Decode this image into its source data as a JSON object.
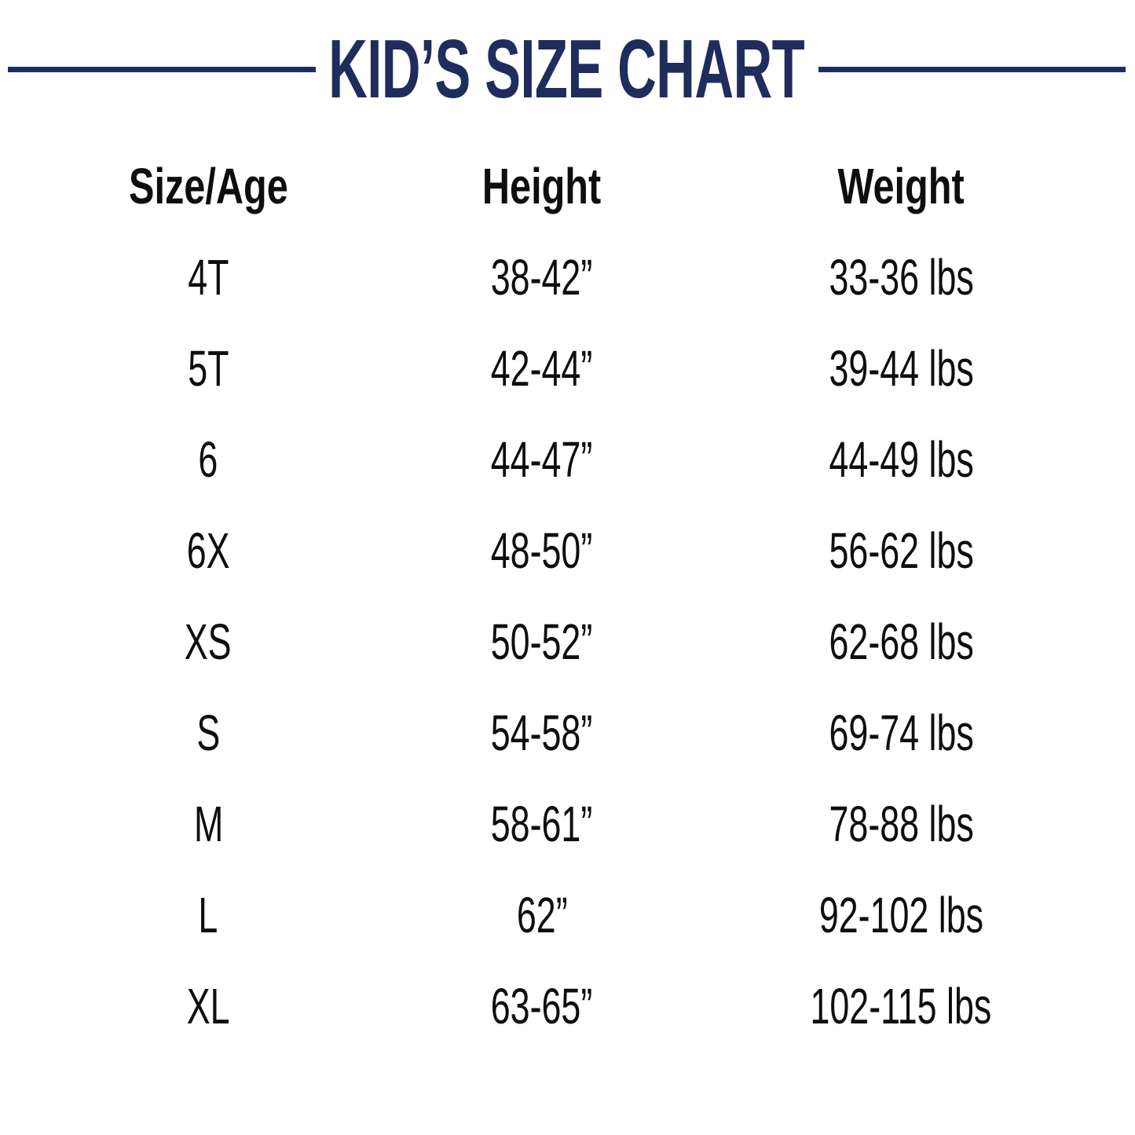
{
  "page_title": "KID’S SIZE CHART",
  "colors": {
    "navy": "#1e2d5c",
    "text": "#0e0e0e",
    "background": "#ffffff"
  },
  "chart_data": {
    "type": "table",
    "title": "KID’S SIZE CHART",
    "columns": [
      "Size/Age",
      "Height",
      "Weight"
    ],
    "rows": [
      [
        "4T",
        "38-42”",
        "33-36 lbs"
      ],
      [
        "5T",
        "42-44”",
        "39-44 lbs"
      ],
      [
        "6",
        "44-47”",
        "44-49 lbs"
      ],
      [
        "6X",
        "48-50”",
        "56-62 lbs"
      ],
      [
        "XS",
        "50-52”",
        "62-68 lbs"
      ],
      [
        "S",
        "54-58”",
        "69-74 lbs"
      ],
      [
        "M",
        "58-61”",
        "78-88 lbs"
      ],
      [
        "L",
        "62”",
        "92-102 lbs"
      ],
      [
        "XL",
        "63-65”",
        "102-115 lbs"
      ]
    ]
  }
}
